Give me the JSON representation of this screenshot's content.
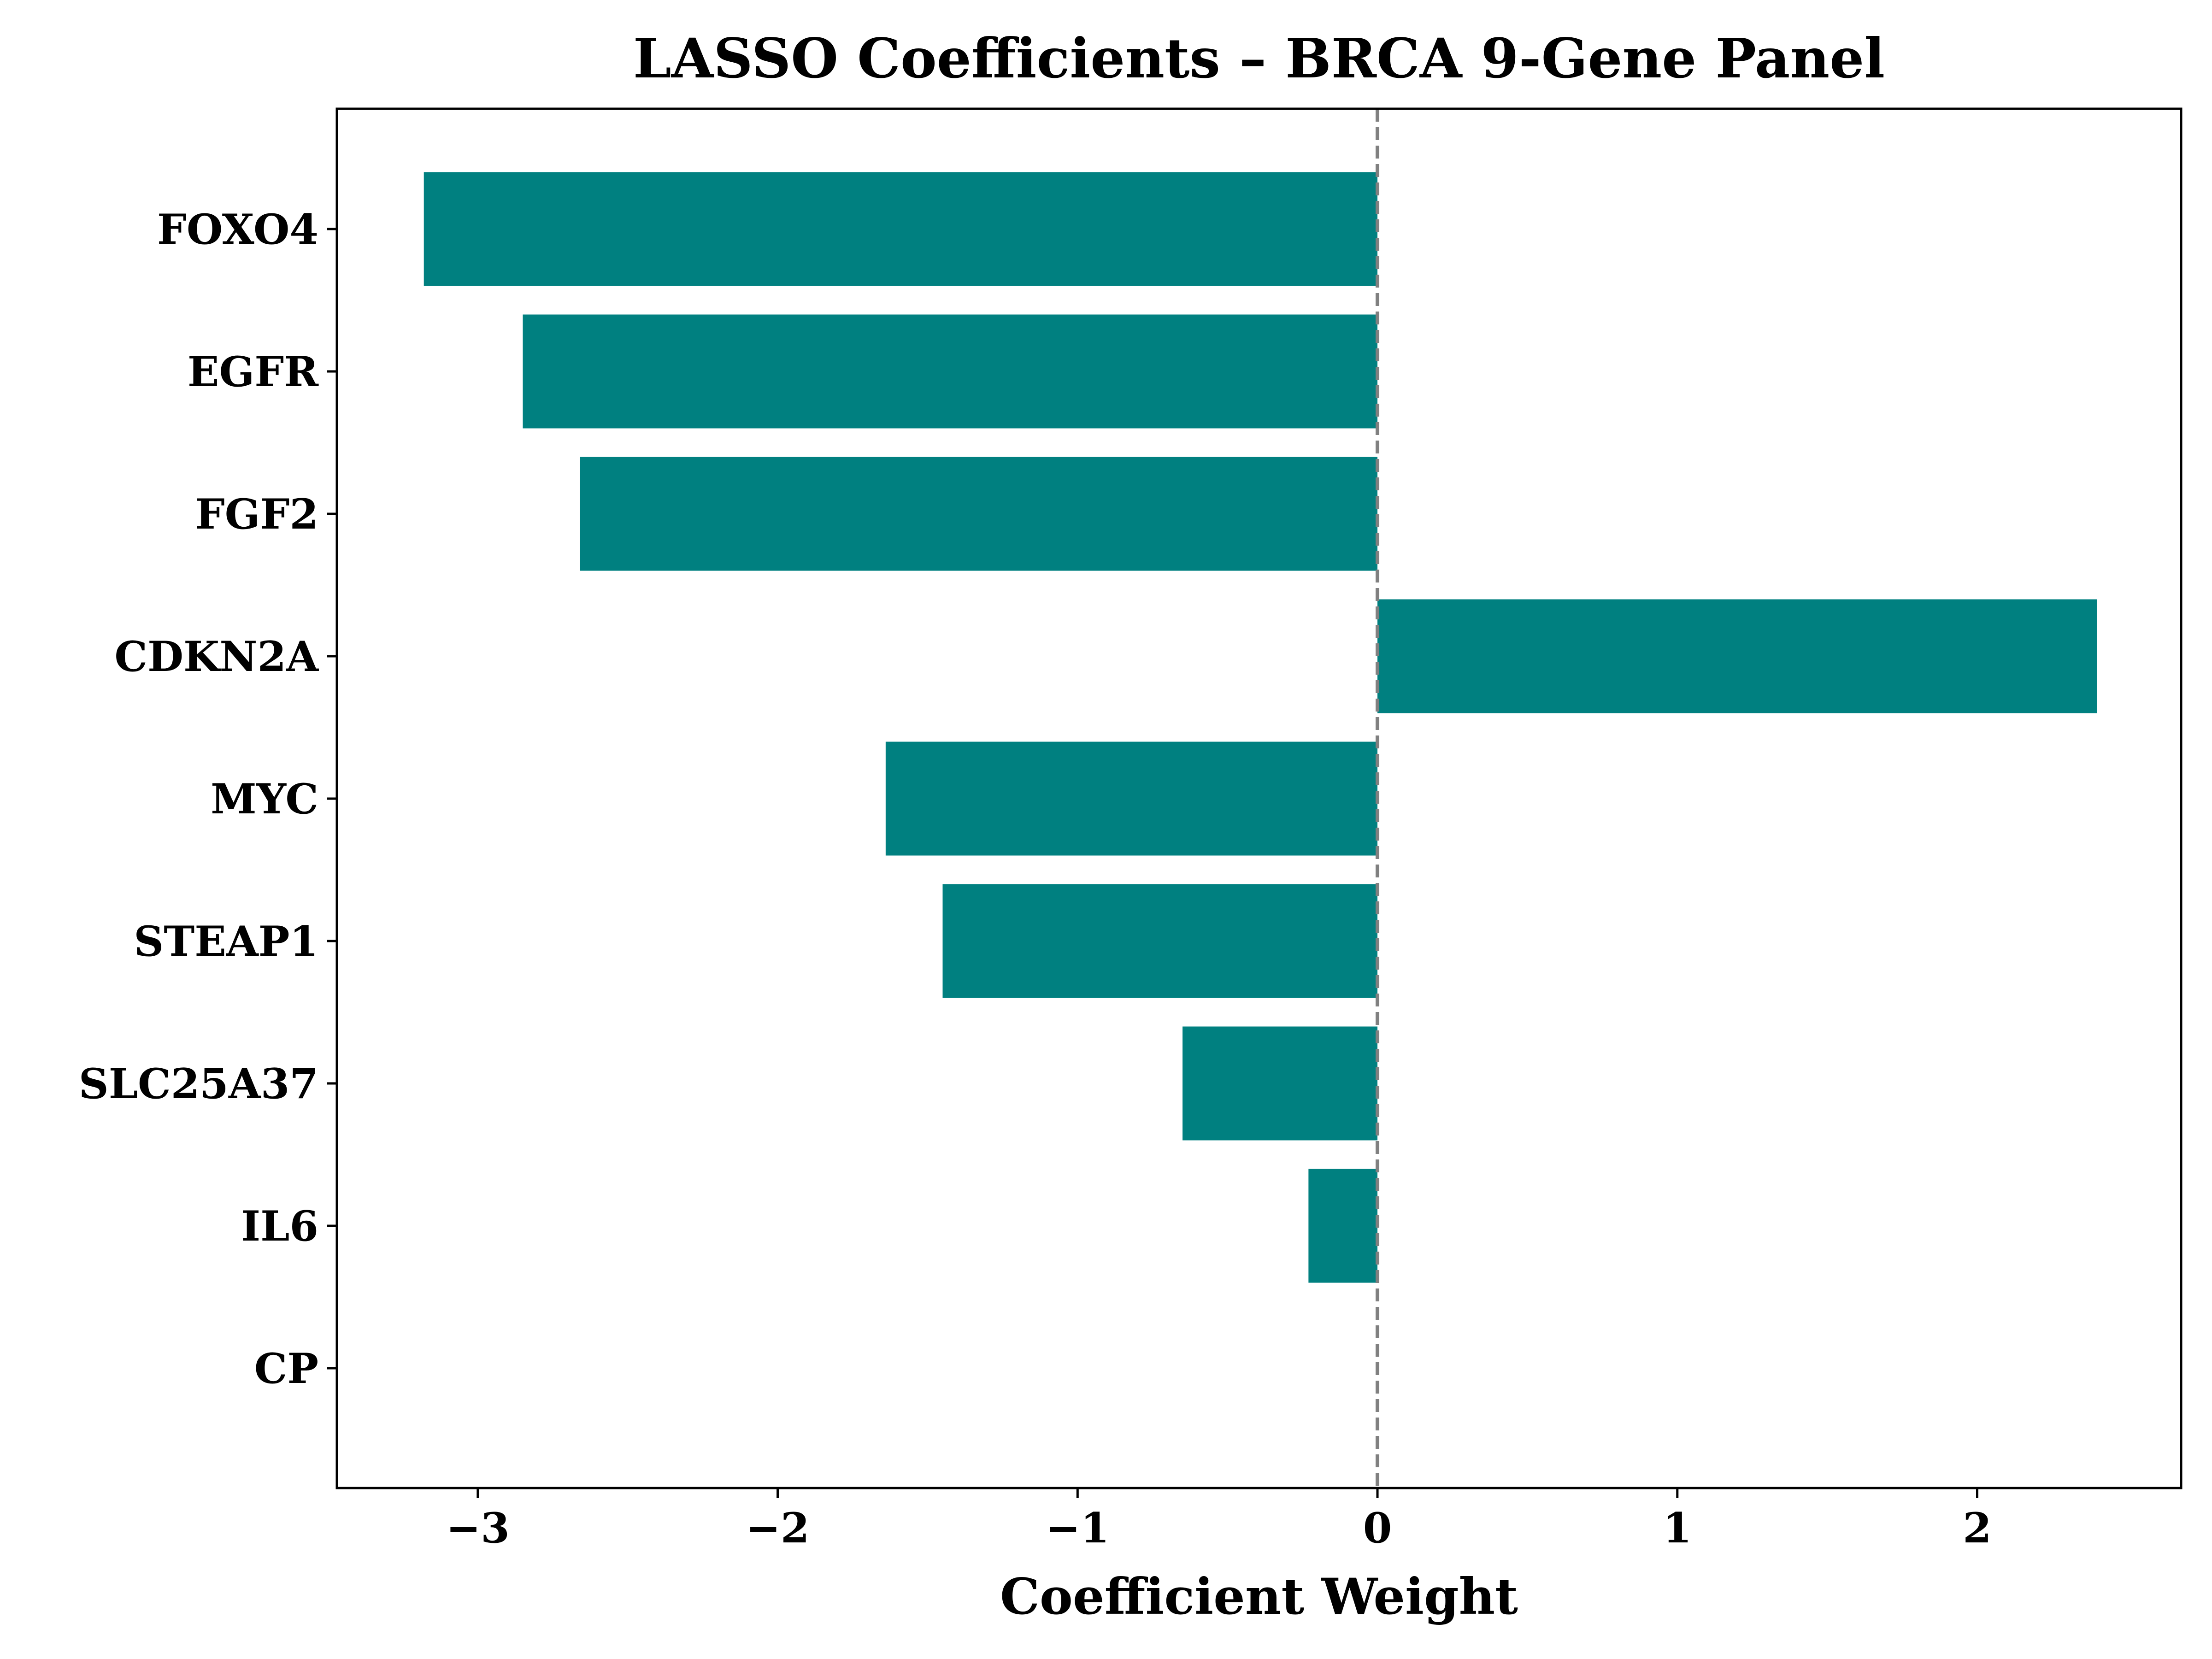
{
  "chart_data": {
    "type": "bar",
    "orientation": "horizontal",
    "title": "LASSO Coefficients – BRCA 9-Gene Panel",
    "xlabel": "Coefficient Weight",
    "ylabel": "",
    "categories": [
      "FOXO4",
      "EGFR",
      "FGF2",
      "CDKN2A",
      "MYC",
      "STEAP1",
      "SLC25A37",
      "IL6",
      "CP"
    ],
    "values": [
      -3.18,
      -2.85,
      -2.66,
      2.4,
      -1.64,
      -1.45,
      -0.65,
      -0.23,
      0.0
    ],
    "xlim": [
      -3.47,
      2.68
    ],
    "xticks": [
      -3,
      -2,
      -1,
      0,
      1,
      2
    ],
    "xtick_labels": [
      "−3",
      "−2",
      "−1",
      "0",
      "1",
      "2"
    ],
    "bar_color": "#008080",
    "reference_line": {
      "x": 0,
      "style": "dashed",
      "color": "#808080"
    },
    "grid": false,
    "legend": "none"
  }
}
